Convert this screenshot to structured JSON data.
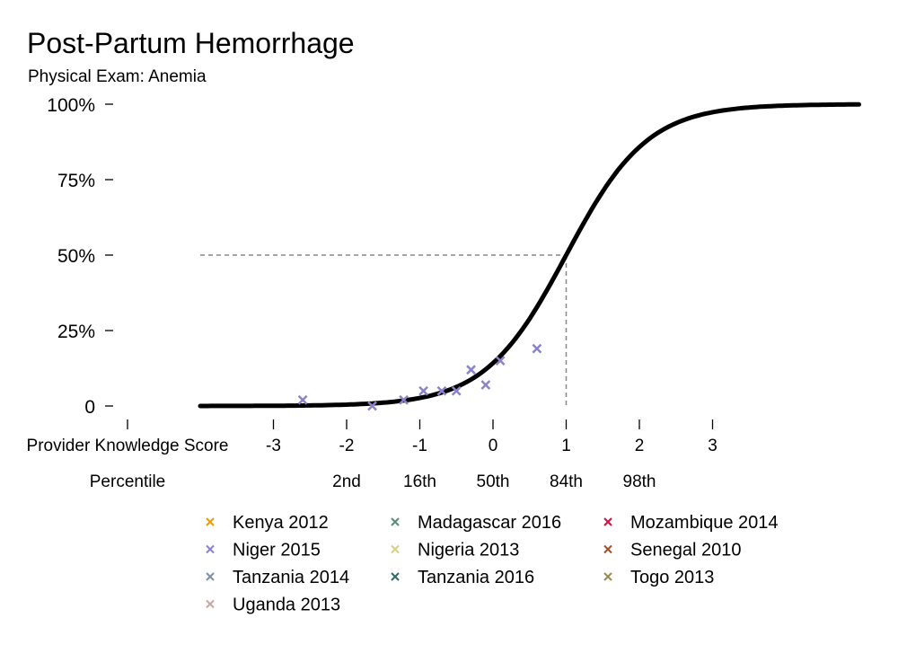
{
  "chart_data": {
    "type": "scatter",
    "title": "Post-Partum Hemorrhage",
    "subtitle": "Physical Exam: Anemia",
    "x_axis": {
      "label": "Provider Knowledge Score",
      "range": [
        -4,
        5
      ],
      "ticks": [
        "-3",
        "-2",
        "-1",
        "0",
        "1",
        "2",
        "3"
      ],
      "tick_values": [
        -3,
        -2,
        -1,
        0,
        1,
        2,
        3
      ]
    },
    "percentile_axis": {
      "label": "Percentile",
      "ticks": [
        "2nd",
        "16th",
        "50th",
        "84th",
        "98th"
      ],
      "tick_values": [
        -2,
        -1,
        0,
        1,
        2
      ]
    },
    "y_axis": {
      "ticks": [
        "0",
        "25%",
        "50%",
        "75%",
        "100%"
      ],
      "tick_values": [
        0,
        0.25,
        0.5,
        0.75,
        1.0
      ],
      "range": [
        0,
        1
      ]
    },
    "curve": {
      "type": "logistic",
      "midpoint": 1.0,
      "slope": 1.8,
      "x_range": [
        -4,
        5
      ],
      "color": "#000000"
    },
    "reference_lines": {
      "x": 1.0,
      "y": 0.5,
      "style": "dashed",
      "color": "#888888"
    },
    "series": [
      {
        "name": "Kenya 2012",
        "color": "#E69F00",
        "points": []
      },
      {
        "name": "Madagascar 2016",
        "color": "#5B8C7A",
        "points": []
      },
      {
        "name": "Mozambique 2014",
        "color": "#D1103E",
        "points": []
      },
      {
        "name": "Niger 2015",
        "color": "#8B83C9",
        "points": [
          {
            "x": -2.6,
            "y": 0.02
          },
          {
            "x": -1.65,
            "y": 0.0
          },
          {
            "x": -1.22,
            "y": 0.02
          },
          {
            "x": -0.95,
            "y": 0.05
          },
          {
            "x": -0.7,
            "y": 0.05
          },
          {
            "x": -0.5,
            "y": 0.05
          },
          {
            "x": -0.3,
            "y": 0.12
          },
          {
            "x": -0.1,
            "y": 0.07
          },
          {
            "x": 0.1,
            "y": 0.15
          },
          {
            "x": 0.6,
            "y": 0.19
          }
        ]
      },
      {
        "name": "Nigeria 2013",
        "color": "#D5CF8B",
        "points": []
      },
      {
        "name": "Senegal 2010",
        "color": "#A0522D",
        "points": []
      },
      {
        "name": "Tanzania 2014",
        "color": "#7E8FA8",
        "points": []
      },
      {
        "name": "Tanzania 2016",
        "color": "#2F6B66",
        "points": []
      },
      {
        "name": "Togo 2013",
        "color": "#9C8A4E",
        "points": []
      },
      {
        "name": "Uganda 2013",
        "color": "#C9A7A0",
        "points": []
      }
    ]
  }
}
